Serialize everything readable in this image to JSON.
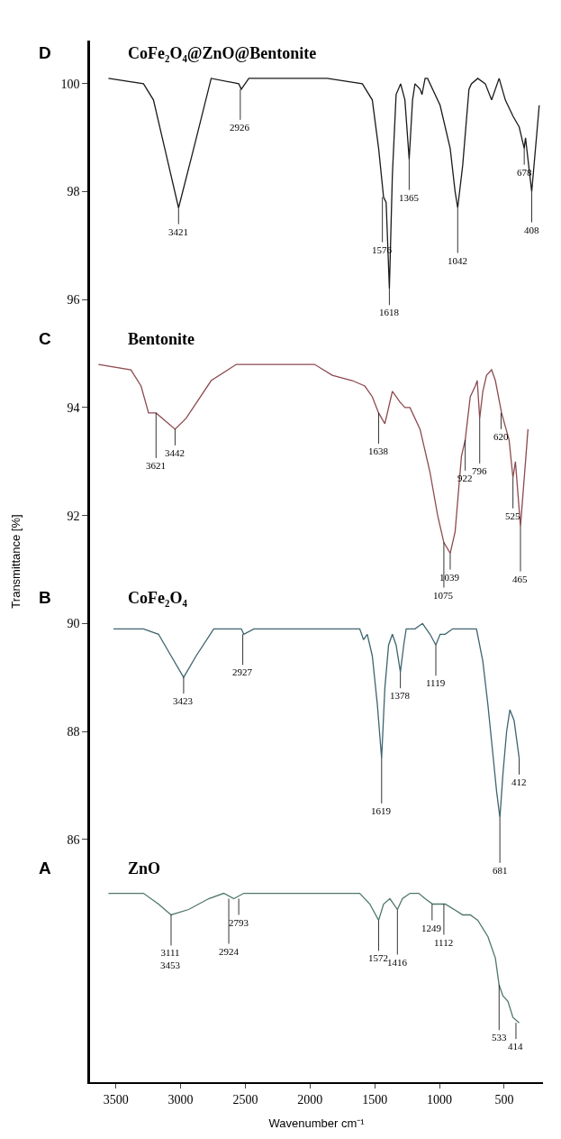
{
  "chart_data": {
    "type": "line",
    "xlabel": "Wavenumber cm⁻¹",
    "ylabel": "Transmittance [%]",
    "xlim": [
      3700,
      200
    ],
    "xticks": [
      3500,
      3000,
      2500,
      2000,
      1500,
      1000,
      500
    ],
    "ylim": [
      81.5,
      100.8
    ],
    "yticks": [
      86,
      88,
      90,
      92,
      94,
      96,
      98,
      100
    ],
    "series": [
      {
        "name": "CoFe₂O₄@ZnO@Bentonite",
        "color": "#1a1a1a",
        "x": [
          3558,
          3287,
          3210,
          3113,
          3016,
          2899,
          2764,
          2551,
          2531,
          2473,
          1868,
          1596,
          1519,
          1470,
          1432,
          1412,
          1387,
          1364,
          1335,
          1300,
          1267,
          1234,
          1208,
          1189,
          1150,
          1135,
          1111,
          1092,
          995,
          917,
          879,
          859,
          820,
          772,
          753,
          704,
          646,
          597,
          539,
          491,
          432,
          384,
          345,
          335,
          316,
          287,
          258,
          229
        ],
        "values": [
          100.1,
          100.0,
          99.7,
          98.7,
          97.7,
          98.8,
          100.1,
          100.0,
          99.9,
          100.1,
          100.1,
          100.0,
          99.7,
          98.8,
          97.9,
          97.8,
          96.2,
          98.3,
          99.8,
          100.0,
          99.7,
          98.6,
          99.7,
          100.0,
          99.9,
          99.8,
          100.1,
          100.1,
          99.6,
          98.8,
          98.0,
          97.7,
          98.5,
          99.9,
          100.0,
          100.1,
          100.0,
          99.7,
          100.1,
          99.7,
          99.4,
          99.2,
          98.8,
          99.0,
          98.6,
          98.0,
          98.8,
          99.6
        ]
      },
      {
        "name": "Bentonite",
        "color": "#8c4a50",
        "x": [
          3635,
          3384,
          3306,
          3248,
          3190,
          3043,
          2958,
          2764,
          2570,
          1965,
          1829,
          1674,
          1577,
          1519,
          1470,
          1422,
          1364,
          1305,
          1267,
          1228,
          1150,
          1073,
          1014,
          966,
          917,
          879,
          830,
          801,
          762,
          723,
          708,
          689,
          665,
          636,
          597,
          568,
          520,
          462,
          432,
          413,
          374,
          335,
          316
        ],
        "values": [
          94.8,
          94.7,
          94.4,
          93.9,
          93.9,
          93.6,
          93.8,
          94.5,
          94.8,
          94.8,
          94.6,
          94.5,
          94.4,
          94.2,
          93.9,
          93.7,
          94.3,
          94.1,
          94.0,
          94.0,
          93.6,
          92.8,
          92.0,
          91.5,
          91.3,
          91.7,
          93.1,
          93.4,
          94.2,
          94.4,
          94.5,
          93.8,
          94.3,
          94.6,
          94.7,
          94.5,
          93.9,
          93.4,
          92.7,
          93.0,
          91.8,
          93.0,
          93.6
        ]
      },
      {
        "name": "CoFe₂O₄",
        "color": "#3f6470",
        "x": [
          3519,
          3287,
          3171,
          3074,
          2977,
          2880,
          2744,
          2531,
          2512,
          2434,
          1616,
          1587,
          1558,
          1519,
          1480,
          1447,
          1422,
          1393,
          1364,
          1335,
          1302,
          1276,
          1257,
          1189,
          1131,
          1073,
          1028,
          995,
          956,
          898,
          801,
          762,
          714,
          665,
          626,
          588,
          559,
          533,
          510,
          481,
          456,
          423,
          384
        ],
        "values": [
          89.9,
          89.9,
          89.8,
          89.4,
          89.0,
          89.4,
          89.9,
          89.9,
          89.8,
          89.9,
          89.9,
          89.7,
          89.8,
          89.4,
          88.5,
          87.5,
          88.8,
          89.6,
          89.8,
          89.6,
          89.1,
          89.6,
          89.9,
          89.9,
          90.0,
          89.8,
          89.6,
          89.8,
          89.8,
          89.9,
          89.9,
          89.9,
          89.9,
          89.3,
          88.5,
          87.6,
          86.9,
          86.4,
          87.2,
          88.0,
          88.4,
          88.2,
          87.5
        ]
      },
      {
        "name": "ZnO",
        "color": "#4e7866",
        "x": [
          3558,
          3287,
          3171,
          3074,
          2938,
          2783,
          2667,
          2589,
          2512,
          1674,
          1616,
          1538,
          1470,
          1432,
          1383,
          1325,
          1286,
          1228,
          1160,
          1111,
          1053,
          956,
          820,
          762,
          704,
          626,
          568,
          539,
          510,
          471,
          432,
          384
        ],
        "values": [
          85.0,
          85.0,
          84.8,
          84.6,
          84.7,
          84.9,
          85.0,
          84.9,
          85.0,
          85.0,
          85.0,
          84.8,
          84.5,
          84.8,
          84.9,
          84.7,
          84.9,
          85.0,
          85.0,
          84.9,
          84.8,
          84.8,
          84.6,
          84.6,
          84.5,
          84.2,
          83.8,
          83.3,
          83.1,
          83.0,
          82.7,
          82.6
        ]
      }
    ],
    "annotations": [
      "D",
      "C",
      "B",
      "A",
      {
        "text": "3421",
        "x": 3016,
        "y": 97.7
      },
      {
        "text": "2926",
        "x": 2539,
        "y": 99.9
      },
      {
        "text": "1576",
        "x": 1441,
        "y": 97.9
      },
      {
        "text": "1618",
        "x": 1387,
        "y": 96.2
      },
      {
        "text": "1365",
        "x": 1234,
        "y": 98.6
      },
      {
        "text": "1042",
        "x": 859,
        "y": 97.7
      },
      {
        "text": "678",
        "x": 345,
        "y": 98.8
      },
      {
        "text": "408",
        "x": 287,
        "y": 98.0
      },
      {
        "text": "3621",
        "x": 3190,
        "y": 93.9
      },
      {
        "text": "3442",
        "x": 3043,
        "y": 93.6
      },
      {
        "text": "1638",
        "x": 1470,
        "y": 93.9
      },
      {
        "text": "1075",
        "x": 966,
        "y": 91.5
      },
      {
        "text": "1039",
        "x": 917,
        "y": 91.3
      },
      {
        "text": "922",
        "x": 801,
        "y": 93.4
      },
      {
        "text": "796",
        "x": 689,
        "y": 93.8
      },
      {
        "text": "620",
        "x": 524,
        "y": 93.9
      },
      {
        "text": "525",
        "x": 432,
        "y": 92.7
      },
      {
        "text": "465",
        "x": 374,
        "y": 91.8
      },
      {
        "text": "3423",
        "x": 2977,
        "y": 89.0
      },
      {
        "text": "2927",
        "x": 2520,
        "y": 89.8
      },
      {
        "text": "1619",
        "x": 1447,
        "y": 87.5
      },
      {
        "text": "1378",
        "x": 1302,
        "y": 89.1
      },
      {
        "text": "1119",
        "x": 1028,
        "y": 89.6
      },
      {
        "text": "681",
        "x": 533,
        "y": 86.4
      },
      {
        "text": "412",
        "x": 384,
        "y": 87.5
      },
      {
        "text": "3111\n3453",
        "x": 3074,
        "y": 84.6
      },
      {
        "text": "2924",
        "x": 2628,
        "y": 84.9
      },
      {
        "text": "2793",
        "x": 2551,
        "y": 84.9
      },
      {
        "text": "1572",
        "x": 1470,
        "y": 84.5
      },
      {
        "text": "1416",
        "x": 1325,
        "y": 84.7
      },
      {
        "text": "1249",
        "x": 1057,
        "y": 84.8
      },
      {
        "text": "1112",
        "x": 966,
        "y": 84.8
      },
      {
        "text": "533",
        "x": 539,
        "y": 83.3
      },
      {
        "text": "414",
        "x": 409,
        "y": 82.6
      }
    ]
  }
}
